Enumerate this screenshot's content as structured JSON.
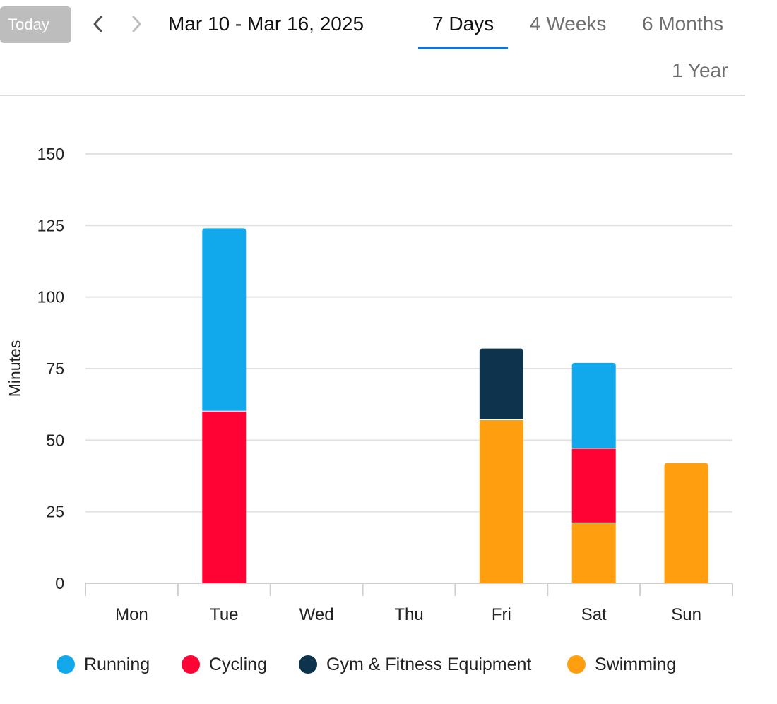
{
  "toolbar": {
    "today_label": "Today",
    "prev_icon": "chevron-left-icon",
    "next_icon": "chevron-right-icon",
    "date_range": "Mar 10 - Mar 16, 2025"
  },
  "tabs": [
    {
      "label": "7 Days",
      "active": true
    },
    {
      "label": "4 Weeks",
      "active": false
    },
    {
      "label": "6 Months",
      "active": false
    },
    {
      "label": "1 Year",
      "active": false
    }
  ],
  "colors": {
    "accent": "#1a73c8",
    "Running": "#12a8ec",
    "Cycling": "#ff0335",
    "Gym & Fitness Equipment": "#0e334d",
    "Swimming": "#ff9f10"
  },
  "chart_data": {
    "type": "bar",
    "stacked": true,
    "categories": [
      "Mon",
      "Tue",
      "Wed",
      "Thu",
      "Fri",
      "Sat",
      "Sun"
    ],
    "series": [
      {
        "name": "Swimming",
        "values": [
          0,
          0,
          0,
          0,
          57,
          21,
          42
        ]
      },
      {
        "name": "Cycling",
        "values": [
          0,
          60,
          0,
          0,
          0,
          26,
          0
        ]
      },
      {
        "name": "Gym & Fitness Equipment",
        "values": [
          0,
          0,
          0,
          0,
          25,
          0,
          0
        ]
      },
      {
        "name": "Running",
        "values": [
          0,
          64,
          0,
          0,
          0,
          30,
          0
        ]
      }
    ],
    "legend_order": [
      "Running",
      "Cycling",
      "Gym & Fitness Equipment",
      "Swimming"
    ],
    "ylabel": "Minutes",
    "xlabel": "",
    "ylim": [
      0,
      150
    ],
    "yticks": [
      "0",
      "25",
      "50",
      "75",
      "100",
      "125",
      "150"
    ],
    "grid": true,
    "legend_position": "bottom"
  }
}
